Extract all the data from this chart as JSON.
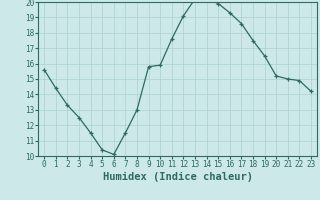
{
  "x": [
    0,
    1,
    2,
    3,
    4,
    5,
    6,
    7,
    8,
    9,
    10,
    11,
    12,
    13,
    14,
    15,
    16,
    17,
    18,
    19,
    20,
    21,
    22,
    23
  ],
  "y": [
    15.6,
    14.4,
    13.3,
    12.5,
    11.5,
    10.4,
    10.1,
    11.5,
    13.0,
    15.8,
    15.9,
    17.6,
    19.1,
    20.2,
    20.2,
    19.9,
    19.3,
    18.6,
    17.5,
    16.5,
    15.2,
    15.0,
    14.9,
    14.2
  ],
  "line_color": "#2e6b5e",
  "marker": "+",
  "background_color": "#cce8e8",
  "grid_color": "#aad0d0",
  "xlabel": "Humidex (Indice chaleur)",
  "ylim": [
    10,
    20
  ],
  "xlim": [
    -0.5,
    23.5
  ],
  "yticks": [
    10,
    11,
    12,
    13,
    14,
    15,
    16,
    17,
    18,
    19,
    20
  ],
  "xticks": [
    0,
    1,
    2,
    3,
    4,
    5,
    6,
    7,
    8,
    9,
    10,
    11,
    12,
    13,
    14,
    15,
    16,
    17,
    18,
    19,
    20,
    21,
    22,
    23
  ],
  "tick_label_fontsize": 5.5,
  "xlabel_fontsize": 7.5,
  "axis_color": "#2e6b5e"
}
